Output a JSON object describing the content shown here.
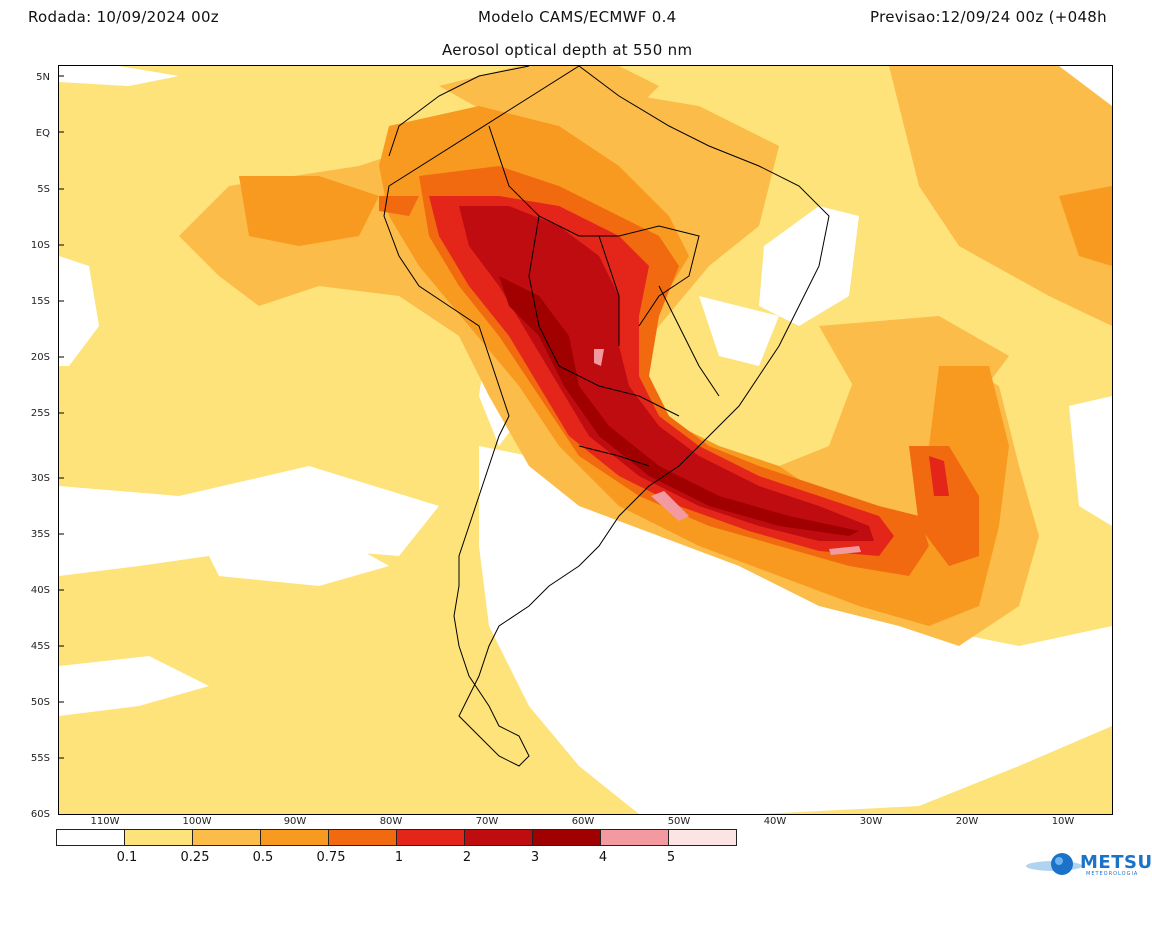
{
  "header": {
    "run": "Rodada: 10/09/2024 00z",
    "model": "Modelo CAMS/ECMWF 0.4",
    "forecast": "Previsao:12/09/24 00z (+048h"
  },
  "variable_title": "Aerosol optical depth at 550 nm",
  "lat_labels": [
    "5N",
    "EQ",
    "5S",
    "10S",
    "15S",
    "20S",
    "25S",
    "30S",
    "35S",
    "40S",
    "45S",
    "50S",
    "55S",
    "60S"
  ],
  "lon_labels": [
    "110W",
    "100W",
    "90W",
    "80W",
    "70W",
    "60W",
    "50W",
    "40W",
    "30W",
    "20W",
    "10W"
  ],
  "colorbar": {
    "colors": [
      "#ffffff",
      "#fde37a",
      "#fbbc4a",
      "#f99a20",
      "#f26a0f",
      "#e3251a",
      "#bf0c10",
      "#a00000",
      "#f29aa0",
      "#fde4e4"
    ],
    "labels": [
      "0.1",
      "0.25",
      "0.5",
      "0.75",
      "1",
      "2",
      "3",
      "4",
      "5"
    ]
  },
  "logo": {
    "name": "METSUL",
    "tagline": "METEOROLOGIA",
    "icon": "globe-icon",
    "brand_color": "#1a73c8"
  }
}
